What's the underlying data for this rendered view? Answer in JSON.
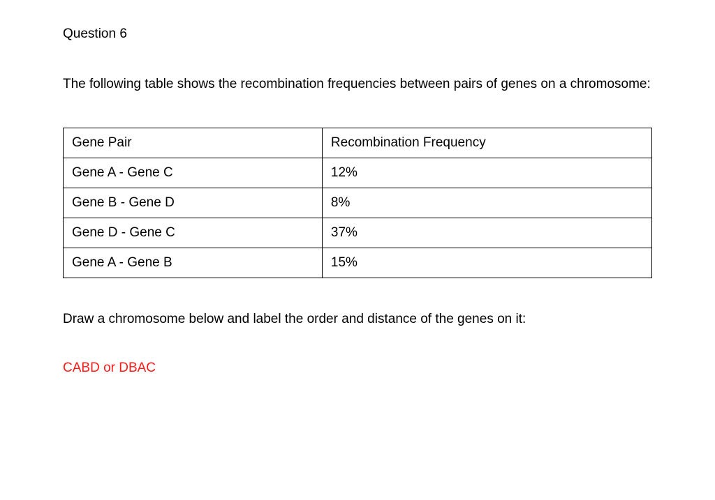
{
  "question": {
    "title": "Question 6",
    "prompt": "The following table shows the recombination frequencies between pairs of genes on a chromosome:",
    "instruction": "Draw a chromosome below and label the order and distance of the genes on it:",
    "answer": "CABD or DBAC"
  },
  "table": {
    "columns": [
      "Gene Pair",
      "Recombination Frequency"
    ],
    "rows": [
      [
        "Gene A - Gene C",
        "12%"
      ],
      [
        "Gene B - Gene D",
        "8%"
      ],
      [
        "Gene D - Gene C",
        "37%"
      ],
      [
        "Gene A - Gene B",
        "15%"
      ]
    ],
    "border_color": "#000000",
    "border_width": 1.5,
    "cell_padding": "10px 12px",
    "font_size": 19,
    "col_widths_pct": [
      44,
      56
    ]
  },
  "styling": {
    "background_color": "#ffffff",
    "text_color": "#000000",
    "answer_color": "#ff1a1a",
    "body_font_size": 19,
    "font_family": "Arial, Helvetica, sans-serif"
  }
}
